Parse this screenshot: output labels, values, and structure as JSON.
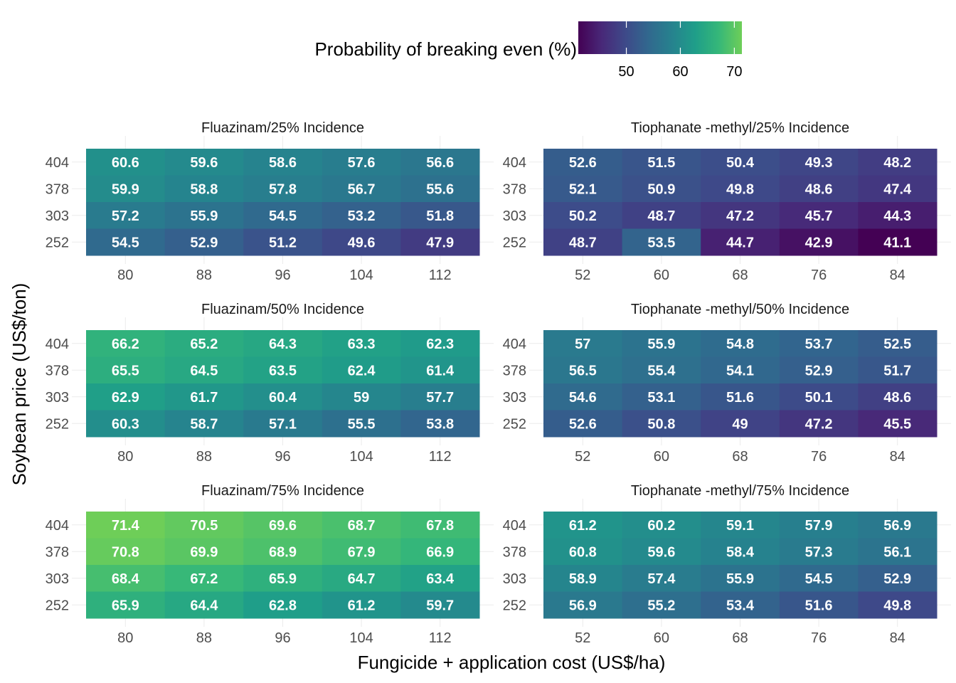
{
  "chart_data": {
    "type": "heatmap",
    "legend": {
      "title": "Probability of breaking even (%)",
      "ticks": [
        50,
        60,
        70
      ],
      "range": [
        41.1,
        71.4
      ],
      "colors": [
        "#440154",
        "#482878",
        "#3e4989",
        "#31688e",
        "#26828e",
        "#1f9e89",
        "#35b779",
        "#6ece58"
      ],
      "placement": "top"
    },
    "xlabel": "Fungicide + application cost (US$/ha)",
    "ylabel": "Soybean price (US$/ton)",
    "y_categories": [
      "404",
      "378",
      "303",
      "252"
    ],
    "panels": [
      {
        "title": "Fluazinam/25% Incidence",
        "x_categories": [
          "80",
          "88",
          "96",
          "104",
          "112"
        ],
        "values": [
          [
            60.6,
            59.6,
            58.6,
            57.6,
            56.6
          ],
          [
            59.9,
            58.8,
            57.8,
            56.7,
            55.6
          ],
          [
            57.2,
            55.9,
            54.5,
            53.2,
            51.8
          ],
          [
            54.5,
            52.9,
            51.2,
            49.6,
            47.9
          ]
        ]
      },
      {
        "title": "Tiophanate -methyl/25% Incidence",
        "x_categories": [
          "52",
          "60",
          "68",
          "76",
          "84"
        ],
        "values": [
          [
            52.6,
            51.5,
            50.4,
            49.3,
            48.2
          ],
          [
            52.1,
            50.9,
            49.8,
            48.6,
            47.4
          ],
          [
            50.2,
            48.7,
            47.2,
            45.7,
            44.3
          ],
          [
            48.7,
            53.5,
            44.7,
            42.9,
            41.1
          ]
        ]
      },
      {
        "title": "Fluazinam/50% Incidence",
        "x_categories": [
          "80",
          "88",
          "96",
          "104",
          "112"
        ],
        "values": [
          [
            66.2,
            65.2,
            64.3,
            63.3,
            62.3
          ],
          [
            65.5,
            64.5,
            63.5,
            62.4,
            61.4
          ],
          [
            62.9,
            61.7,
            60.4,
            59,
            57.7
          ],
          [
            60.3,
            58.7,
            57.1,
            55.5,
            53.8
          ]
        ]
      },
      {
        "title": "Tiophanate -methyl/50% Incidence",
        "x_categories": [
          "52",
          "60",
          "68",
          "76",
          "84"
        ],
        "values": [
          [
            57,
            55.9,
            54.8,
            53.7,
            52.5
          ],
          [
            56.5,
            55.4,
            54.1,
            52.9,
            51.7
          ],
          [
            54.6,
            53.1,
            51.6,
            50.1,
            48.6
          ],
          [
            52.6,
            50.8,
            49,
            47.2,
            45.5
          ]
        ]
      },
      {
        "title": "Fluazinam/75% Incidence",
        "x_categories": [
          "80",
          "88",
          "96",
          "104",
          "112"
        ],
        "values": [
          [
            71.4,
            70.5,
            69.6,
            68.7,
            67.8
          ],
          [
            70.8,
            69.9,
            68.9,
            67.9,
            66.9
          ],
          [
            68.4,
            67.2,
            65.9,
            64.7,
            63.4
          ],
          [
            65.9,
            64.4,
            62.8,
            61.2,
            59.7
          ]
        ]
      },
      {
        "title": "Tiophanate -methyl/75% Incidence",
        "x_categories": [
          "52",
          "60",
          "68",
          "76",
          "84"
        ],
        "values": [
          [
            61.2,
            60.2,
            59.1,
            57.9,
            56.9
          ],
          [
            60.8,
            59.6,
            58.4,
            57.3,
            56.1
          ],
          [
            58.9,
            57.4,
            55.9,
            54.5,
            52.9
          ],
          [
            56.9,
            55.2,
            53.4,
            51.6,
            49.8
          ]
        ]
      }
    ],
    "grid": true
  }
}
